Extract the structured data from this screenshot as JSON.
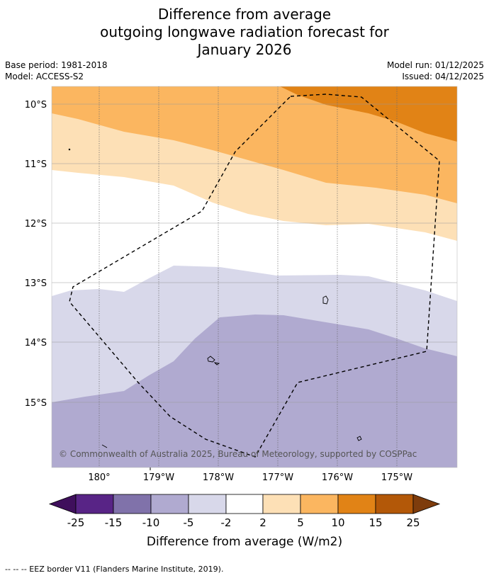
{
  "title": {
    "line1": "Difference from average",
    "line2": "outgoing longwave radiation forecast for",
    "line3": "January 2026"
  },
  "meta": {
    "base_period": "Base period: 1981-2018",
    "model": "Model: ACCESS-S2",
    "model_run": "Model run: 01/12/2025",
    "issued": "Issued: 04/12/2025"
  },
  "map": {
    "lat_labels": [
      "10°S",
      "11°S",
      "12°S",
      "13°S",
      "14°S",
      "15°S"
    ],
    "lon_labels": [
      "180°",
      "179°W",
      "178°W",
      "177°W",
      "176°W",
      "175°W"
    ],
    "copyright": "© Commonwealth of Australia 2025, Bureau of Meteorology, supported by COSPPac"
  },
  "legend": {
    "ticks": [
      "-25",
      "-15",
      "-10",
      "-5",
      "-2",
      "2",
      "5",
      "10",
      "15",
      "25"
    ],
    "colors": [
      "#3f0f5c",
      "#582486",
      "#8072aa",
      "#b0aad0",
      "#d8d8ea",
      "#ffffff",
      "#fde0b6",
      "#fbb660",
      "#e18316",
      "#b35808",
      "#7e3c0c"
    ],
    "label": "Difference from average (W/m2)"
  },
  "footer": {
    "note": "--  --  -- EEZ border V11 (Flanders Marine Institute, 2019)."
  }
}
